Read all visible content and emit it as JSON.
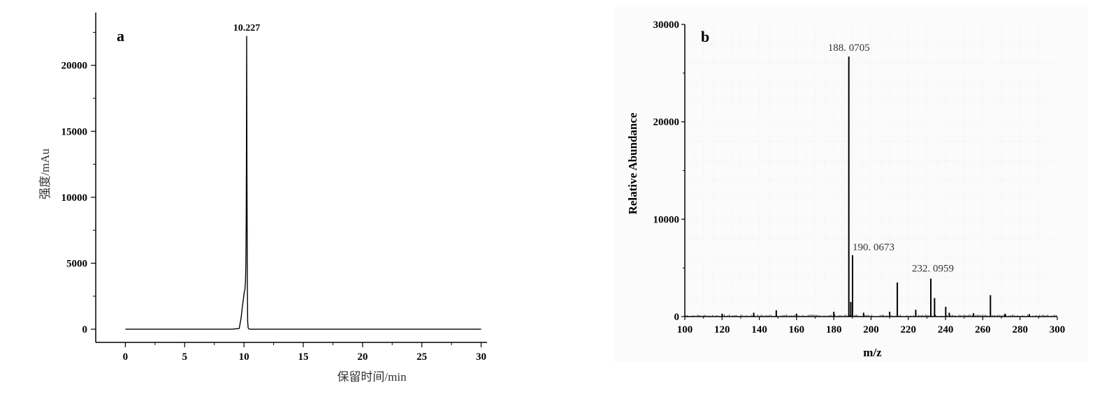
{
  "chart_data": [
    {
      "type": "line",
      "panel_label": "a",
      "xlabel": "保留时间/min",
      "ylabel": "强度/mAu",
      "xlim": [
        -2.5,
        30.5
      ],
      "ylim": [
        -1000,
        24000
      ],
      "xticks": [
        0,
        5,
        10,
        15,
        20,
        25,
        30
      ],
      "yticks": [
        0,
        5000,
        10000,
        15000,
        20000
      ],
      "series": [
        {
          "x": [
            0,
            9.0,
            9.6,
            9.75,
            9.85,
            9.95,
            10.02,
            10.08,
            10.13,
            10.16,
            10.19,
            10.21,
            10.227,
            10.25,
            10.28,
            10.31,
            10.35,
            10.45,
            10.6,
            11.0,
            13.0,
            30.0
          ],
          "values": [
            0,
            0,
            50,
            800,
            1600,
            2300,
            2800,
            3000,
            3600,
            4900,
            8000,
            14000,
            22200,
            12000,
            4000,
            600,
            100,
            0,
            0,
            0,
            0,
            0
          ]
        }
      ],
      "annotations": [
        {
          "x": 10.227,
          "y": 22200,
          "text": "10.227"
        }
      ],
      "grid": false
    },
    {
      "type": "bar",
      "panel_label": "b",
      "xlabel": "m/z",
      "ylabel": "Relative Abundance",
      "xlim": [
        100,
        300
      ],
      "ylim": [
        0,
        30000
      ],
      "xticks": [
        100,
        120,
        140,
        160,
        180,
        200,
        220,
        240,
        260,
        280,
        300
      ],
      "yticks": [
        0,
        10000,
        20000,
        30000
      ],
      "grid": true,
      "series": [
        {
          "x": [
            188.0705,
            190.0673,
            214.1,
            232.0959,
            234.1,
            240.1,
            264.1,
            189.1,
            149.1,
            180.0,
            242.0,
            210.0,
            224.0,
            196.0,
            120.0,
            137.0,
            160.0,
            255.0,
            272.0,
            285.0
          ],
          "values": [
            26700,
            6300,
            3500,
            3900,
            1900,
            1000,
            2200,
            1500,
            650,
            500,
            400,
            500,
            700,
            400,
            300,
            400,
            300,
            350,
            300,
            250
          ]
        }
      ],
      "annotations": [
        {
          "x": 188.0705,
          "y": 26700,
          "text": "188. 0705",
          "color": "#e8212b"
        },
        {
          "x": 190.0673,
          "y": 6300,
          "text": "190. 0673"
        },
        {
          "x": 232.0959,
          "y": 3900,
          "text": "232. 0959"
        }
      ]
    }
  ]
}
